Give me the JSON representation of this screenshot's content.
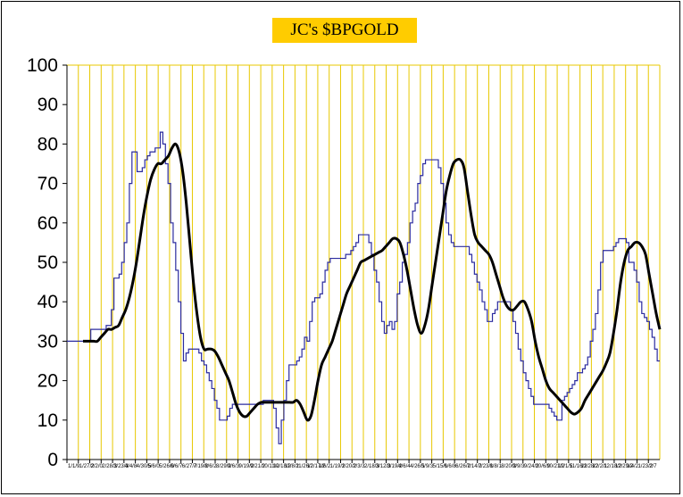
{
  "chart_data": {
    "type": "line",
    "title": "JC's $BPGOLD",
    "xlabel": "",
    "ylabel": "",
    "ylim": [
      0,
      100
    ],
    "yticks": [
      0,
      10,
      20,
      30,
      40,
      50,
      60,
      70,
      80,
      90,
      100
    ],
    "xtick_labels": [
      "1/1/9",
      "1/27/2",
      "2/2/0",
      "2/28/3",
      "3/23/3",
      "4/4/8",
      "4/30/5",
      "5/6/0",
      "5/26/0",
      "6/6/7",
      "6/27/7",
      "7/19/2",
      "8/6/2",
      "8/29/2",
      "9/6/3",
      "9/19/2",
      "9/21/2",
      "10/11/2",
      "10/18/2",
      "11/8/2",
      "11/26/2",
      "12/17/2",
      "1/6/2",
      "1/19/2",
      "1/20/2",
      "2/3/3",
      "2/18/3",
      "3/12/3",
      "3/19/2",
      "4/6/4",
      "4/26/1",
      "5/9/3",
      "5/15/1",
      "6/6/8",
      "6/26/2",
      "7/14/2",
      "7/23/1",
      "8/8/1",
      "8/20/3",
      "9/9/3",
      "9/24/2",
      "10/6/9",
      "10/21/2",
      "11/1/5",
      "11/16/2",
      "11/28/2",
      "12/2/1",
      "12/18/2",
      "12/29/2",
      "1/4/2",
      "1/23/2",
      "2/7"
    ],
    "grid": true,
    "grid_color": "#E8C800",
    "legend": "none",
    "series": [
      {
        "color": "#2B2B9F",
        "style": "step",
        "values": [
          30,
          30,
          30,
          30,
          33,
          33,
          33,
          33,
          33,
          33,
          34,
          34,
          38,
          46,
          46,
          47,
          50,
          55,
          60,
          70,
          78,
          78,
          73,
          73,
          74,
          76,
          77,
          78,
          78,
          79,
          79,
          83,
          80,
          75,
          70,
          60,
          55,
          48,
          40,
          32,
          25,
          27,
          28,
          28,
          28,
          28,
          27,
          25,
          24,
          22,
          20,
          18,
          15,
          13,
          10,
          10,
          10,
          11,
          13,
          14,
          14,
          14,
          14,
          14,
          14,
          14,
          14,
          14,
          14,
          14,
          14,
          15,
          15,
          15,
          15,
          13,
          8,
          4,
          10,
          15,
          20,
          24,
          24,
          24,
          25,
          26,
          28,
          31,
          30,
          35,
          40,
          41,
          41,
          42,
          45,
          48,
          50,
          51,
          51,
          51,
          51,
          51,
          51,
          52,
          52,
          53,
          54,
          55,
          57,
          57,
          57,
          57,
          55,
          52,
          48,
          45,
          40,
          35,
          32,
          34,
          35,
          33,
          35,
          42,
          45,
          50,
          52,
          55,
          60,
          63,
          65,
          70,
          72,
          75,
          76,
          76,
          76,
          76,
          76,
          74,
          70,
          65,
          60,
          57,
          55,
          54,
          54,
          54,
          54,
          54,
          54,
          52,
          50,
          47,
          45,
          43,
          40,
          38,
          35,
          35,
          37,
          38,
          40,
          40,
          40,
          40,
          40,
          38,
          35,
          32,
          28,
          25,
          22,
          20,
          18,
          16,
          14,
          14,
          14,
          14,
          14,
          14,
          13,
          12,
          11,
          10,
          10,
          15,
          16,
          17,
          18,
          19,
          20,
          22,
          22,
          23,
          24,
          26,
          30,
          33,
          37,
          43,
          50,
          53,
          53,
          53,
          53,
          54,
          55,
          56,
          56,
          56,
          55,
          50,
          50,
          48,
          45,
          40,
          37,
          36,
          35,
          33,
          31,
          28,
          25
        ]
      },
      {
        "color": "#000000",
        "style": "smooth",
        "values": [
          30,
          30,
          30,
          30,
          30,
          31,
          32,
          33,
          33,
          33.5,
          34,
          36,
          38,
          41,
          45,
          50,
          56,
          62,
          67,
          71,
          73.5,
          75,
          75,
          76,
          77,
          79,
          80,
          78,
          73,
          65,
          55,
          45,
          37,
          31,
          28,
          28,
          28,
          27.5,
          26,
          24,
          22,
          20,
          17,
          14,
          12,
          11,
          11,
          12,
          13,
          14,
          14.5,
          14.5,
          14.5,
          14.5,
          14.5,
          14.5,
          14.5,
          14.5,
          14.5,
          14.5,
          15,
          14,
          12,
          10,
          11,
          15,
          20,
          24,
          26,
          28,
          30,
          33,
          36,
          39,
          42,
          44,
          46,
          48,
          50,
          50.5,
          51,
          51.5,
          52,
          52.5,
          53,
          54,
          55,
          56,
          56,
          55,
          52,
          48,
          43,
          38,
          34,
          32,
          34,
          38,
          44,
          50,
          56,
          62,
          68,
          72,
          75,
          76,
          76,
          74,
          68,
          62,
          57,
          55,
          54,
          53,
          52,
          50,
          47,
          44,
          41,
          39,
          38,
          38,
          39,
          40,
          40,
          38,
          35,
          30,
          26,
          23,
          20,
          18,
          17,
          16,
          15,
          14,
          13,
          12,
          11.5,
          12,
          13,
          15,
          16.5,
          18,
          19.5,
          21,
          22.5,
          24.5,
          27,
          32,
          38,
          45,
          50,
          53,
          54,
          55,
          55,
          54,
          52,
          47,
          42,
          37,
          33
        ]
      }
    ]
  }
}
